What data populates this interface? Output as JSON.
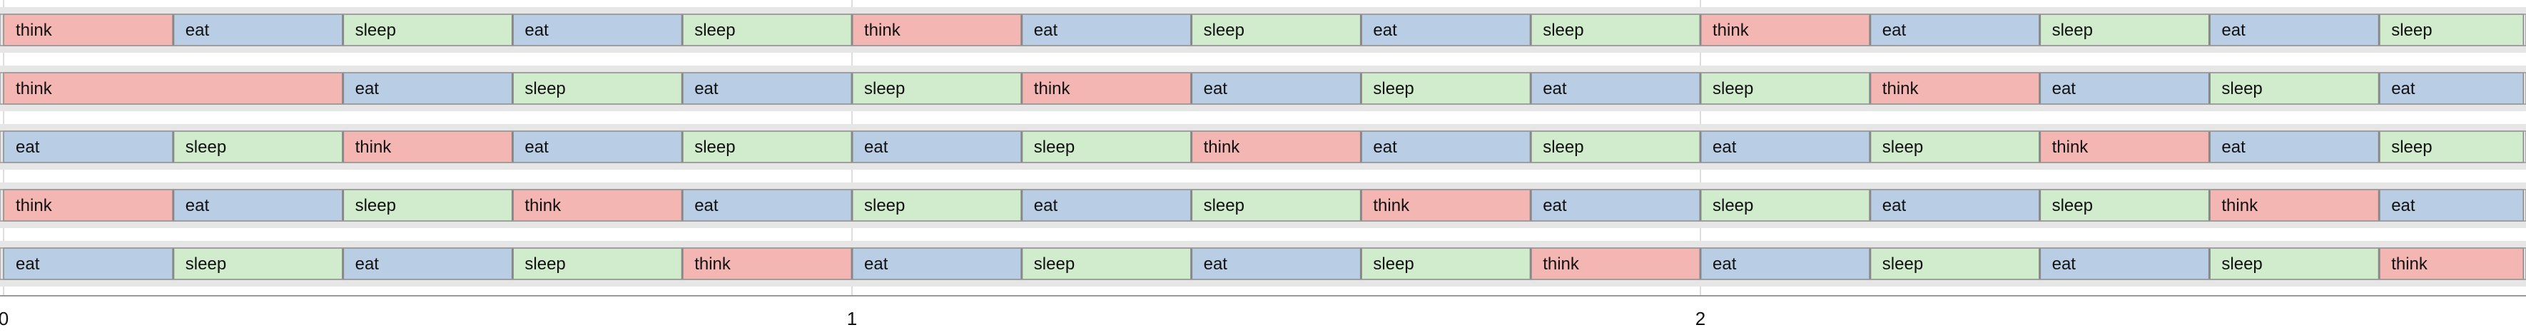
{
  "chart_data": {
    "type": "gantt",
    "title": "",
    "xlabel": "",
    "ylabel": "",
    "xlim": [
      0,
      2.97
    ],
    "x_ticks": [
      "0",
      "1",
      "2"
    ],
    "grid": true,
    "colors": {
      "think": "#f4b6b3",
      "eat": "#b9cde4",
      "sleep": "#d1ebcd",
      "row_band": "#e6e6e6",
      "segment_border": "#888888",
      "row_border": "#999999",
      "grid_line": "#dddddd"
    },
    "rows": [
      {
        "segments": [
          {
            "start": 0.0,
            "end": 0.2,
            "label": "think"
          },
          {
            "start": 0.2,
            "end": 0.4,
            "label": "eat"
          },
          {
            "start": 0.4,
            "end": 0.6,
            "label": "sleep"
          },
          {
            "start": 0.6,
            "end": 0.8,
            "label": "eat"
          },
          {
            "start": 0.8,
            "end": 1.0,
            "label": "sleep"
          },
          {
            "start": 1.0,
            "end": 1.2,
            "label": "think"
          },
          {
            "start": 1.2,
            "end": 1.4,
            "label": "eat"
          },
          {
            "start": 1.4,
            "end": 1.6,
            "label": "sleep"
          },
          {
            "start": 1.6,
            "end": 1.8,
            "label": "eat"
          },
          {
            "start": 1.8,
            "end": 2.0,
            "label": "sleep"
          },
          {
            "start": 2.0,
            "end": 2.2,
            "label": "think"
          },
          {
            "start": 2.2,
            "end": 2.4,
            "label": "eat"
          },
          {
            "start": 2.4,
            "end": 2.6,
            "label": "sleep"
          },
          {
            "start": 2.6,
            "end": 2.8,
            "label": "eat"
          },
          {
            "start": 2.8,
            "end": 2.97,
            "label": "sleep"
          }
        ]
      },
      {
        "segments": [
          {
            "start": 0.0,
            "end": 0.4,
            "label": "think"
          },
          {
            "start": 0.4,
            "end": 0.6,
            "label": "eat"
          },
          {
            "start": 0.6,
            "end": 0.8,
            "label": "sleep"
          },
          {
            "start": 0.8,
            "end": 1.0,
            "label": "eat"
          },
          {
            "start": 1.0,
            "end": 1.2,
            "label": "sleep"
          },
          {
            "start": 1.2,
            "end": 1.4,
            "label": "think"
          },
          {
            "start": 1.4,
            "end": 1.6,
            "label": "eat"
          },
          {
            "start": 1.6,
            "end": 1.8,
            "label": "sleep"
          },
          {
            "start": 1.8,
            "end": 2.0,
            "label": "eat"
          },
          {
            "start": 2.0,
            "end": 2.2,
            "label": "sleep"
          },
          {
            "start": 2.2,
            "end": 2.4,
            "label": "think"
          },
          {
            "start": 2.4,
            "end": 2.6,
            "label": "eat"
          },
          {
            "start": 2.6,
            "end": 2.8,
            "label": "sleep"
          },
          {
            "start": 2.8,
            "end": 2.97,
            "label": "eat"
          }
        ]
      },
      {
        "segments": [
          {
            "start": 0.0,
            "end": 0.2,
            "label": "eat"
          },
          {
            "start": 0.2,
            "end": 0.4,
            "label": "sleep"
          },
          {
            "start": 0.4,
            "end": 0.6,
            "label": "think"
          },
          {
            "start": 0.6,
            "end": 0.8,
            "label": "eat"
          },
          {
            "start": 0.8,
            "end": 1.0,
            "label": "sleep"
          },
          {
            "start": 1.0,
            "end": 1.2,
            "label": "eat"
          },
          {
            "start": 1.2,
            "end": 1.4,
            "label": "sleep"
          },
          {
            "start": 1.4,
            "end": 1.6,
            "label": "think"
          },
          {
            "start": 1.6,
            "end": 1.8,
            "label": "eat"
          },
          {
            "start": 1.8,
            "end": 2.0,
            "label": "sleep"
          },
          {
            "start": 2.0,
            "end": 2.2,
            "label": "eat"
          },
          {
            "start": 2.2,
            "end": 2.4,
            "label": "sleep"
          },
          {
            "start": 2.4,
            "end": 2.6,
            "label": "think"
          },
          {
            "start": 2.6,
            "end": 2.8,
            "label": "eat"
          },
          {
            "start": 2.8,
            "end": 2.97,
            "label": "sleep"
          }
        ]
      },
      {
        "segments": [
          {
            "start": 0.0,
            "end": 0.2,
            "label": "think"
          },
          {
            "start": 0.2,
            "end": 0.4,
            "label": "eat"
          },
          {
            "start": 0.4,
            "end": 0.6,
            "label": "sleep"
          },
          {
            "start": 0.6,
            "end": 0.8,
            "label": "think"
          },
          {
            "start": 0.8,
            "end": 1.0,
            "label": "eat"
          },
          {
            "start": 1.0,
            "end": 1.2,
            "label": "sleep"
          },
          {
            "start": 1.2,
            "end": 1.4,
            "label": "eat"
          },
          {
            "start": 1.4,
            "end": 1.6,
            "label": "sleep"
          },
          {
            "start": 1.6,
            "end": 1.8,
            "label": "think"
          },
          {
            "start": 1.8,
            "end": 2.0,
            "label": "eat"
          },
          {
            "start": 2.0,
            "end": 2.2,
            "label": "sleep"
          },
          {
            "start": 2.2,
            "end": 2.4,
            "label": "eat"
          },
          {
            "start": 2.4,
            "end": 2.6,
            "label": "sleep"
          },
          {
            "start": 2.6,
            "end": 2.8,
            "label": "think"
          },
          {
            "start": 2.8,
            "end": 2.97,
            "label": "eat"
          }
        ]
      },
      {
        "segments": [
          {
            "start": 0.0,
            "end": 0.2,
            "label": "eat"
          },
          {
            "start": 0.2,
            "end": 0.4,
            "label": "sleep"
          },
          {
            "start": 0.4,
            "end": 0.6,
            "label": "eat"
          },
          {
            "start": 0.6,
            "end": 0.8,
            "label": "sleep"
          },
          {
            "start": 0.8,
            "end": 1.0,
            "label": "think"
          },
          {
            "start": 1.0,
            "end": 1.2,
            "label": "eat"
          },
          {
            "start": 1.2,
            "end": 1.4,
            "label": "sleep"
          },
          {
            "start": 1.4,
            "end": 1.6,
            "label": "eat"
          },
          {
            "start": 1.6,
            "end": 1.8,
            "label": "sleep"
          },
          {
            "start": 1.8,
            "end": 2.0,
            "label": "think"
          },
          {
            "start": 2.0,
            "end": 2.2,
            "label": "eat"
          },
          {
            "start": 2.2,
            "end": 2.4,
            "label": "sleep"
          },
          {
            "start": 2.4,
            "end": 2.6,
            "label": "eat"
          },
          {
            "start": 2.6,
            "end": 2.8,
            "label": "sleep"
          },
          {
            "start": 2.8,
            "end": 2.97,
            "label": "think"
          }
        ]
      }
    ]
  }
}
